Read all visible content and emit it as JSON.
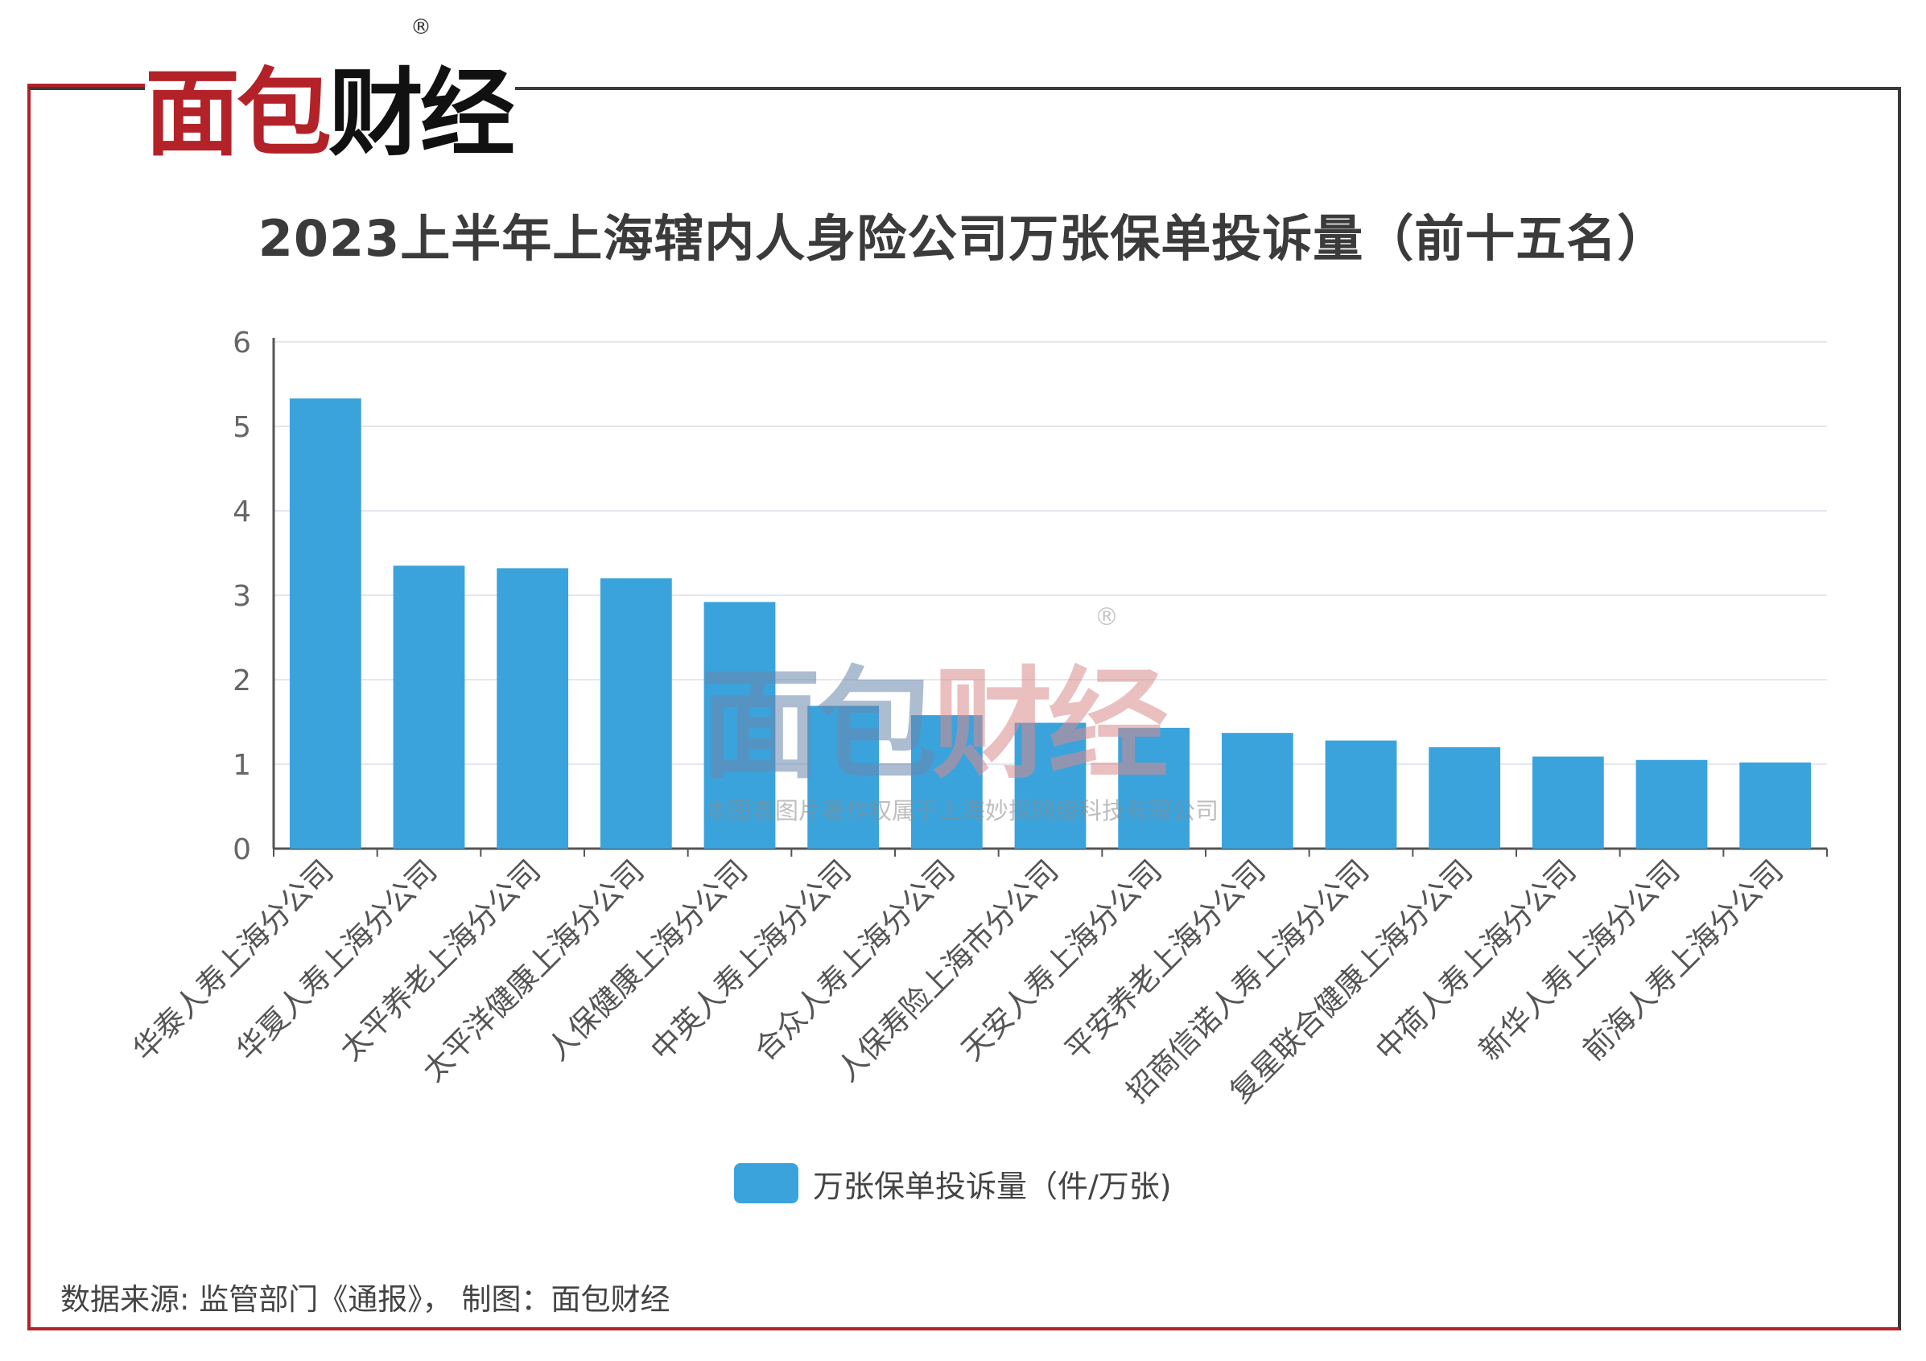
{
  "brand": {
    "logo_part1": "面包",
    "logo_part2": "财经",
    "registered": "®"
  },
  "title": "2023上半年上海辖内人身险公司万张保单投诉量（前十五名）",
  "watermark": {
    "part1": "面包",
    "part2": "财经",
    "registered": "®",
    "subtext": "本图表图片著作权属于上海妙探网络科技有限公司"
  },
  "legend": {
    "label": "万张保单投诉量（件/万张)"
  },
  "footer": "数据来源: 监管部门《通报》， 制图：面包财经",
  "colors": {
    "bar": "#3ba3dc",
    "brand_red": "#b32228",
    "grid": "#e4e7ee",
    "axis": "#555555"
  },
  "chart_data": {
    "type": "bar",
    "title": "2023上半年上海辖内人身险公司万张保单投诉量（前十五名）",
    "categories": [
      "华泰人寿上海分公司",
      "华夏人寿上海分公司",
      "太平养老上海分公司",
      "太平洋健康上海分公司",
      "人保健康上海分公司",
      "中英人寿上海分公司",
      "合众人寿上海分公司",
      "人保寿险上海市分公司",
      "天安人寿上海分公司",
      "平安养老上海分公司",
      "招商信诺人寿上海分公司",
      "复星联合健康上海分公司",
      "中荷人寿上海分公司",
      "新华人寿上海分公司",
      "前海人寿上海分公司"
    ],
    "series": [
      {
        "name": "万张保单投诉量（件/万张)",
        "values": [
          5.33,
          3.35,
          3.32,
          3.2,
          2.92,
          1.69,
          1.58,
          1.49,
          1.43,
          1.37,
          1.28,
          1.2,
          1.09,
          1.05,
          1.02
        ]
      }
    ],
    "y_ticks": [
      "0",
      "1",
      "2",
      "3",
      "4",
      "5",
      "6"
    ],
    "ylim": [
      0,
      6
    ],
    "grid": true,
    "legend_position": "bottom-center"
  }
}
